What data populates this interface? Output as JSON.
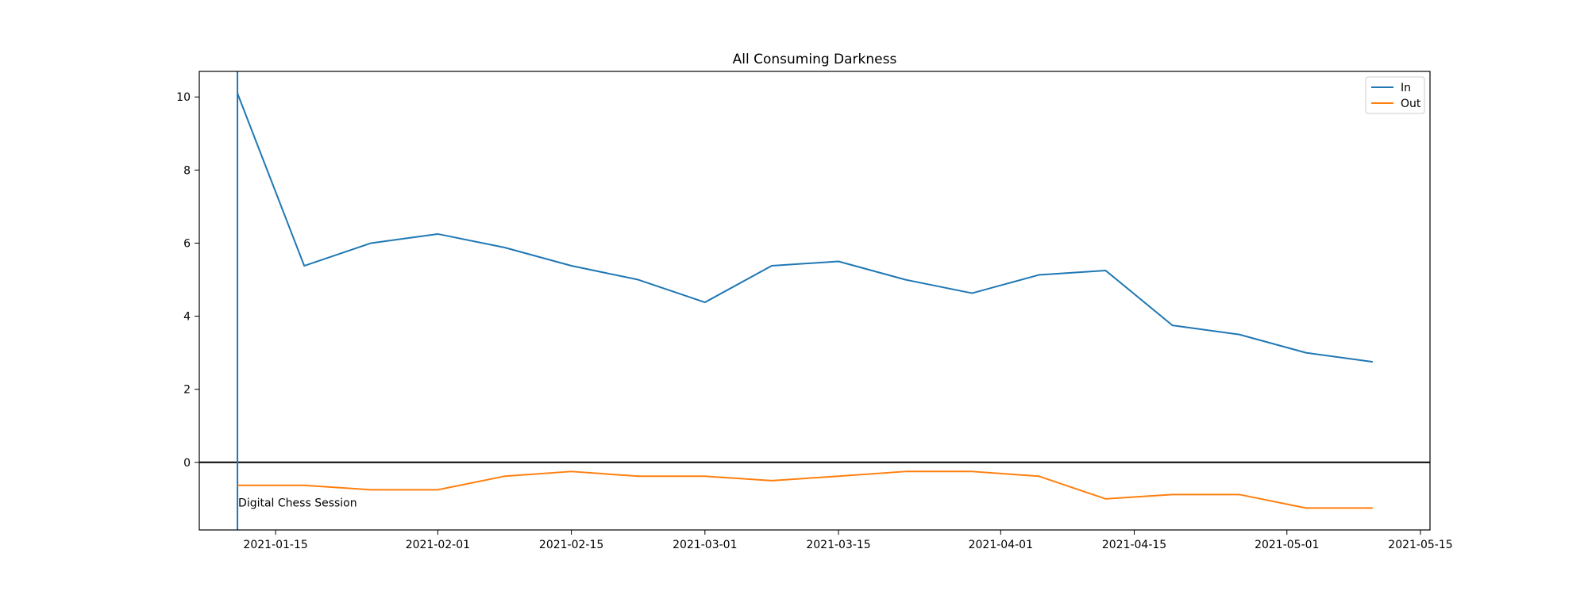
{
  "chart_data": {
    "type": "line",
    "title": "All Consuming Darkness",
    "xlabel": "",
    "ylabel": "",
    "x_type": "date",
    "xlim": [
      "2021-01-07",
      "2021-05-16"
    ],
    "ylim": [
      -1.85,
      10.7
    ],
    "x_ticks": [
      "2021-01-15",
      "2021-02-01",
      "2021-02-15",
      "2021-03-01",
      "2021-03-15",
      "2021-04-01",
      "2021-04-15",
      "2021-05-01",
      "2021-05-15"
    ],
    "y_ticks": [
      0,
      2,
      4,
      6,
      8,
      10
    ],
    "grid": false,
    "legend_position": "top-right",
    "x": [
      "2021-01-11",
      "2021-01-18",
      "2021-01-25",
      "2021-02-01",
      "2021-02-08",
      "2021-02-15",
      "2021-02-22",
      "2021-03-01",
      "2021-03-08",
      "2021-03-15",
      "2021-03-22",
      "2021-03-29",
      "2021-04-05",
      "2021-04-12",
      "2021-04-19",
      "2021-04-26",
      "2021-05-03",
      "2021-05-10"
    ],
    "series": [
      {
        "name": "In",
        "color": "#1f77b4",
        "values": [
          10.1,
          5.38,
          6.0,
          6.25,
          5.88,
          5.38,
          5.0,
          4.38,
          5.38,
          5.5,
          5.0,
          4.63,
          5.13,
          5.25,
          3.75,
          3.5,
          3.0,
          2.75
        ]
      },
      {
        "name": "Out",
        "color": "#ff7f0e",
        "values": [
          -0.63,
          -0.63,
          -0.75,
          -0.75,
          -0.38,
          -0.25,
          -0.38,
          -0.38,
          -0.5,
          -0.38,
          -0.25,
          -0.25,
          -0.38,
          -1.0,
          -0.88,
          -0.88,
          -1.25,
          -1.25
        ]
      }
    ],
    "reference_lines": {
      "horizontal_y": 0,
      "horizontal_color": "#000000",
      "vertical_x": "2021-01-11",
      "vertical_color": "#1f77b4"
    },
    "annotation": {
      "text": "Digital Chess Session",
      "x": "2021-01-11",
      "y": -1.1
    }
  }
}
